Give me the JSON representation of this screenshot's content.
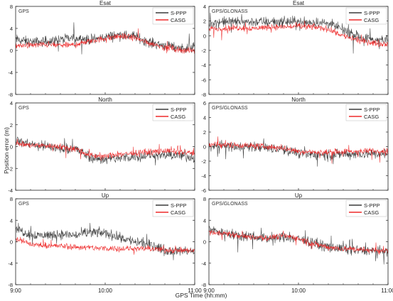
{
  "figure": {
    "ylabel": "Position error (m)",
    "xlabel": "GPS Time  (hh:mm)",
    "colors": {
      "s_ppp": "#3a3a3a",
      "casg": "#ee2a2a"
    }
  },
  "chart_data": [
    {
      "type": "line",
      "title": "Esat",
      "panel_label": "GPS",
      "x_ticks": [
        "9:00",
        "10:00",
        "11:00"
      ],
      "ylim": [
        -8,
        8
      ],
      "y_ticks": [
        -8,
        -4,
        0,
        4,
        8
      ],
      "legend": "top-right",
      "series": [
        {
          "name": "S-PPP",
          "x": [
            "9:00",
            "9:10",
            "9:20",
            "9:30",
            "9:40",
            "9:50",
            "10:00",
            "10:10",
            "10:20",
            "10:30",
            "10:40",
            "10:50",
            "11:00"
          ],
          "values": [
            2.0,
            1.5,
            1.6,
            1.9,
            2.3,
            1.9,
            2.4,
            2.8,
            2.6,
            1.4,
            0.9,
            0.4,
            0.6
          ]
        },
        {
          "name": "CASG",
          "x": [
            "9:00",
            "9:10",
            "9:20",
            "9:30",
            "9:40",
            "9:50",
            "10:00",
            "10:10",
            "10:20",
            "10:30",
            "10:40",
            "10:50",
            "11:00"
          ],
          "values": [
            0.8,
            0.9,
            1.1,
            0.9,
            1.0,
            1.7,
            2.2,
            2.6,
            2.3,
            1.3,
            0.6,
            0.1,
            -0.1
          ]
        }
      ]
    },
    {
      "type": "line",
      "title": "Esat",
      "panel_label": "GPS/GLONASS",
      "x_ticks": [
        "9:00",
        "10:00",
        "11:00"
      ],
      "ylim": [
        -8,
        4
      ],
      "y_ticks": [
        -8,
        -6,
        -4,
        -2,
        0,
        2,
        4
      ],
      "legend": "top-right",
      "series": [
        {
          "name": "S-PPP",
          "x": [
            "9:00",
            "9:10",
            "9:20",
            "9:30",
            "9:40",
            "9:50",
            "10:00",
            "10:10",
            "10:20",
            "10:30",
            "10:40",
            "10:50",
            "11:00"
          ],
          "values": [
            1.7,
            1.9,
            1.9,
            1.9,
            1.9,
            1.9,
            1.9,
            1.8,
            1.7,
            0.8,
            -0.2,
            -0.6,
            -0.6
          ]
        },
        {
          "name": "CASG",
          "x": [
            "9:00",
            "9:10",
            "9:20",
            "9:30",
            "9:40",
            "9:50",
            "10:00",
            "10:10",
            "10:20",
            "10:30",
            "10:40",
            "10:50",
            "11:00"
          ],
          "values": [
            0.9,
            1.0,
            1.1,
            1.0,
            1.2,
            1.2,
            1.3,
            1.2,
            0.9,
            0.0,
            -0.6,
            -1.0,
            -1.1
          ]
        }
      ]
    },
    {
      "type": "line",
      "title": "North",
      "panel_label": "GPS",
      "x_ticks": [
        "9:00",
        "10:00",
        "11:00"
      ],
      "ylim": [
        -4,
        4
      ],
      "y_ticks": [
        -4,
        -2,
        0,
        2,
        4
      ],
      "legend": "top-right",
      "series": [
        {
          "name": "S-PPP",
          "x": [
            "9:00",
            "9:10",
            "9:20",
            "9:30",
            "9:40",
            "9:50",
            "10:00",
            "10:10",
            "10:20",
            "10:30",
            "10:40",
            "10:50",
            "11:00"
          ],
          "values": [
            0.6,
            0.2,
            0.0,
            -0.2,
            -0.2,
            -1.0,
            -1.2,
            -1.0,
            -0.9,
            -0.8,
            -0.8,
            -0.8,
            -1.0
          ]
        },
        {
          "name": "CASG",
          "x": [
            "9:00",
            "9:10",
            "9:20",
            "9:30",
            "9:40",
            "9:50",
            "10:00",
            "10:10",
            "10:20",
            "10:30",
            "10:40",
            "10:50",
            "11:00"
          ],
          "values": [
            0.3,
            0.1,
            0.1,
            0.0,
            -0.2,
            -0.8,
            -0.9,
            -0.7,
            -0.6,
            -0.5,
            -0.4,
            -0.5,
            -0.6
          ]
        }
      ]
    },
    {
      "type": "line",
      "title": "North",
      "panel_label": "GPS/GLONASS",
      "x_ticks": [
        "9:00",
        "10:00",
        "11:00"
      ],
      "ylim": [
        -6,
        6
      ],
      "y_ticks": [
        -6,
        -4,
        -2,
        0,
        2,
        4,
        6
      ],
      "legend": "top-right",
      "series": [
        {
          "name": "S-PPP",
          "x": [
            "9:00",
            "9:10",
            "9:20",
            "9:30",
            "9:40",
            "9:50",
            "10:00",
            "10:10",
            "10:20",
            "10:30",
            "10:40",
            "10:50",
            "11:00"
          ],
          "values": [
            -0.2,
            0.1,
            0.0,
            0.0,
            -0.2,
            -0.4,
            -0.9,
            -1.1,
            -1.1,
            -1.0,
            -1.0,
            -1.0,
            -1.0
          ]
        },
        {
          "name": "CASG",
          "x": [
            "9:00",
            "9:10",
            "9:20",
            "9:30",
            "9:40",
            "9:50",
            "10:00",
            "10:10",
            "10:20",
            "10:30",
            "10:40",
            "10:50",
            "11:00"
          ],
          "values": [
            0.3,
            0.3,
            0.2,
            0.1,
            0.0,
            -0.2,
            -0.6,
            -0.8,
            -0.8,
            -0.7,
            -0.7,
            -0.6,
            -0.6
          ]
        }
      ]
    },
    {
      "type": "line",
      "title": "Up",
      "panel_label": "GPS",
      "x_ticks": [
        "9:00",
        "10:00",
        "11:00"
      ],
      "ylim": [
        -8,
        8
      ],
      "y_ticks": [
        -8,
        -4,
        0,
        4,
        8
      ],
      "legend": "top-right",
      "series": [
        {
          "name": "S-PPP",
          "x": [
            "9:00",
            "9:10",
            "9:20",
            "9:30",
            "9:40",
            "9:50",
            "10:00",
            "10:10",
            "10:20",
            "10:30",
            "10:40",
            "10:50",
            "11:00"
          ],
          "values": [
            2.5,
            1.3,
            1.2,
            1.4,
            1.2,
            1.8,
            1.6,
            0.8,
            0.0,
            -0.5,
            -1.6,
            -1.6,
            -1.9
          ]
        },
        {
          "name": "CASG",
          "x": [
            "9:00",
            "9:10",
            "9:20",
            "9:30",
            "9:40",
            "9:50",
            "10:00",
            "10:10",
            "10:20",
            "10:30",
            "10:40",
            "10:50",
            "11:00"
          ],
          "values": [
            0.6,
            -0.5,
            -0.7,
            -0.8,
            -1.0,
            -1.1,
            -1.2,
            -1.3,
            -1.3,
            -1.3,
            -1.5,
            -1.6,
            -1.7
          ]
        }
      ]
    },
    {
      "type": "line",
      "title": "Up",
      "panel_label": "GPS/GLONASS",
      "x_ticks": [
        "9:00",
        "10:00",
        "11:00"
      ],
      "ylim": [
        -8,
        8
      ],
      "y_ticks": [
        -8,
        -4,
        0,
        4,
        8
      ],
      "legend": "top-right",
      "series": [
        {
          "name": "S-PPP",
          "x": [
            "9:00",
            "9:10",
            "9:20",
            "9:30",
            "9:40",
            "9:50",
            "10:00",
            "10:10",
            "10:20",
            "10:30",
            "10:40",
            "10:50",
            "11:00"
          ],
          "values": [
            2.3,
            1.7,
            1.2,
            1.0,
            0.6,
            0.8,
            0.6,
            -0.3,
            -1.0,
            -1.4,
            -1.6,
            -1.8,
            -1.8
          ]
        },
        {
          "name": "CASG",
          "x": [
            "9:00",
            "9:10",
            "9:20",
            "9:30",
            "9:40",
            "9:50",
            "10:00",
            "10:10",
            "10:20",
            "10:30",
            "10:40",
            "10:50",
            "11:00"
          ],
          "values": [
            1.8,
            1.6,
            1.1,
            0.8,
            0.7,
            1.2,
            0.6,
            -0.4,
            -1.0,
            -1.3,
            -1.4,
            -1.6,
            -1.6
          ]
        }
      ]
    }
  ]
}
